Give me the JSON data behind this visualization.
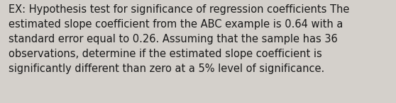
{
  "lines": [
    "EX: Hypothesis test for significance of regression coefficients The",
    "estimated slope coefficient from the ABC example is 0.64 with a",
    "standard error equal to 0.26. Assuming that the sample has 36",
    "observations, determine if the estimated slope coefficient is",
    "significantly different than zero at a 5% level of significance."
  ],
  "background_color": "#d4d0cb",
  "text_color": "#1a1a1a",
  "font_size": 10.5,
  "fig_width": 5.58,
  "fig_height": 1.46,
  "linespacing": 1.5
}
